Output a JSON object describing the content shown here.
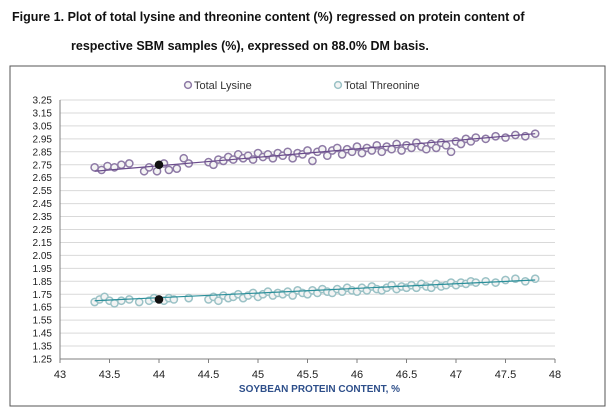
{
  "caption": {
    "line1": "Figure 1.  Plot of total lysine and threonine content (%) regressed on protein content of",
    "line2": "respective SBM samples (%), expressed on 88.0% DM basis."
  },
  "chart_data": {
    "type": "scatter",
    "xlabel": "SOYBEAN PROTEIN CONTENT, %",
    "ylabel": "",
    "xlim": [
      43,
      48
    ],
    "ylim": [
      1.25,
      3.25
    ],
    "xticks": [
      "43",
      "43.5",
      "44",
      "44.5",
      "45",
      "45.5",
      "46",
      "46.5",
      "47",
      "47.5",
      "48"
    ],
    "yticks": [
      "1.25",
      "1.35",
      "1.45",
      "1.55",
      "1.65",
      "1.75",
      "1.85",
      "1.95",
      "2.05",
      "2.15",
      "2.25",
      "2.35",
      "2.45",
      "2.55",
      "2.65",
      "2.75",
      "2.85",
      "2.95",
      "3.05",
      "3.15",
      "3.25"
    ],
    "grid": "horizontal",
    "legend_position": "top",
    "series": [
      {
        "name": "Total Lysine",
        "color": "#8e7aa6",
        "line_color": "#6a4c8c",
        "trend": [
          [
            43.35,
            2.7
          ],
          [
            47.8,
            2.99
          ]
        ],
        "highlight": [
          44.0,
          2.75
        ],
        "points": [
          [
            43.35,
            2.73
          ],
          [
            43.42,
            2.71
          ],
          [
            43.48,
            2.74
          ],
          [
            43.55,
            2.73
          ],
          [
            43.62,
            2.75
          ],
          [
            43.7,
            2.76
          ],
          [
            43.85,
            2.7
          ],
          [
            43.9,
            2.73
          ],
          [
            43.98,
            2.7
          ],
          [
            44.05,
            2.76
          ],
          [
            44.1,
            2.71
          ],
          [
            44.18,
            2.72
          ],
          [
            44.25,
            2.8
          ],
          [
            44.3,
            2.76
          ],
          [
            44.5,
            2.77
          ],
          [
            44.55,
            2.75
          ],
          [
            44.6,
            2.79
          ],
          [
            44.65,
            2.78
          ],
          [
            44.7,
            2.81
          ],
          [
            44.75,
            2.79
          ],
          [
            44.8,
            2.83
          ],
          [
            44.85,
            2.8
          ],
          [
            44.9,
            2.82
          ],
          [
            44.95,
            2.79
          ],
          [
            45.0,
            2.84
          ],
          [
            45.05,
            2.81
          ],
          [
            45.1,
            2.83
          ],
          [
            45.15,
            2.8
          ],
          [
            45.2,
            2.84
          ],
          [
            45.25,
            2.82
          ],
          [
            45.3,
            2.85
          ],
          [
            45.35,
            2.8
          ],
          [
            45.4,
            2.84
          ],
          [
            45.45,
            2.83
          ],
          [
            45.5,
            2.86
          ],
          [
            45.55,
            2.78
          ],
          [
            45.6,
            2.85
          ],
          [
            45.65,
            2.87
          ],
          [
            45.7,
            2.82
          ],
          [
            45.75,
            2.86
          ],
          [
            45.8,
            2.88
          ],
          [
            45.85,
            2.83
          ],
          [
            45.9,
            2.87
          ],
          [
            45.95,
            2.85
          ],
          [
            46.0,
            2.89
          ],
          [
            46.05,
            2.84
          ],
          [
            46.1,
            2.88
          ],
          [
            46.15,
            2.86
          ],
          [
            46.2,
            2.9
          ],
          [
            46.25,
            2.85
          ],
          [
            46.3,
            2.89
          ],
          [
            46.35,
            2.87
          ],
          [
            46.4,
            2.91
          ],
          [
            46.45,
            2.86
          ],
          [
            46.5,
            2.9
          ],
          [
            46.55,
            2.88
          ],
          [
            46.6,
            2.92
          ],
          [
            46.65,
            2.89
          ],
          [
            46.7,
            2.87
          ],
          [
            46.75,
            2.91
          ],
          [
            46.8,
            2.88
          ],
          [
            46.85,
            2.92
          ],
          [
            46.9,
            2.9
          ],
          [
            46.95,
            2.85
          ],
          [
            47.0,
            2.93
          ],
          [
            47.05,
            2.91
          ],
          [
            47.1,
            2.95
          ],
          [
            47.15,
            2.93
          ],
          [
            47.2,
            2.96
          ],
          [
            47.3,
            2.95
          ],
          [
            47.4,
            2.97
          ],
          [
            47.5,
            2.96
          ],
          [
            47.6,
            2.98
          ],
          [
            47.7,
            2.97
          ],
          [
            47.8,
            2.99
          ]
        ]
      },
      {
        "name": "Total Threonine",
        "color": "#9bc2c6",
        "line_color": "#2a8f9a",
        "trend": [
          [
            43.35,
            1.7
          ],
          [
            47.8,
            1.86
          ]
        ],
        "highlight": [
          44.0,
          1.71
        ],
        "points": [
          [
            43.35,
            1.69
          ],
          [
            43.4,
            1.71
          ],
          [
            43.45,
            1.73
          ],
          [
            43.5,
            1.7
          ],
          [
            43.55,
            1.68
          ],
          [
            43.62,
            1.7
          ],
          [
            43.7,
            1.71
          ],
          [
            43.8,
            1.69
          ],
          [
            43.9,
            1.7
          ],
          [
            43.95,
            1.72
          ],
          [
            44.05,
            1.7
          ],
          [
            44.1,
            1.72
          ],
          [
            44.15,
            1.71
          ],
          [
            44.3,
            1.72
          ],
          [
            44.5,
            1.71
          ],
          [
            44.55,
            1.73
          ],
          [
            44.6,
            1.7
          ],
          [
            44.65,
            1.74
          ],
          [
            44.7,
            1.72
          ],
          [
            44.75,
            1.73
          ],
          [
            44.8,
            1.75
          ],
          [
            44.85,
            1.72
          ],
          [
            44.9,
            1.74
          ],
          [
            44.95,
            1.76
          ],
          [
            45.0,
            1.73
          ],
          [
            45.05,
            1.75
          ],
          [
            45.1,
            1.77
          ],
          [
            45.15,
            1.74
          ],
          [
            45.2,
            1.76
          ],
          [
            45.25,
            1.75
          ],
          [
            45.3,
            1.77
          ],
          [
            45.35,
            1.74
          ],
          [
            45.4,
            1.78
          ],
          [
            45.45,
            1.76
          ],
          [
            45.5,
            1.75
          ],
          [
            45.55,
            1.78
          ],
          [
            45.6,
            1.76
          ],
          [
            45.65,
            1.79
          ],
          [
            45.7,
            1.77
          ],
          [
            45.75,
            1.76
          ],
          [
            45.8,
            1.79
          ],
          [
            45.85,
            1.77
          ],
          [
            45.9,
            1.8
          ],
          [
            45.95,
            1.78
          ],
          [
            46.0,
            1.77
          ],
          [
            46.05,
            1.8
          ],
          [
            46.1,
            1.78
          ],
          [
            46.15,
            1.81
          ],
          [
            46.2,
            1.79
          ],
          [
            46.25,
            1.78
          ],
          [
            46.3,
            1.8
          ],
          [
            46.35,
            1.82
          ],
          [
            46.4,
            1.79
          ],
          [
            46.45,
            1.81
          ],
          [
            46.5,
            1.8
          ],
          [
            46.55,
            1.82
          ],
          [
            46.6,
            1.8
          ],
          [
            46.65,
            1.83
          ],
          [
            46.7,
            1.81
          ],
          [
            46.75,
            1.8
          ],
          [
            46.8,
            1.83
          ],
          [
            46.85,
            1.81
          ],
          [
            46.9,
            1.82
          ],
          [
            46.95,
            1.84
          ],
          [
            47.0,
            1.82
          ],
          [
            47.05,
            1.84
          ],
          [
            47.1,
            1.83
          ],
          [
            47.15,
            1.85
          ],
          [
            47.2,
            1.84
          ],
          [
            47.3,
            1.85
          ],
          [
            47.4,
            1.84
          ],
          [
            47.5,
            1.86
          ],
          [
            47.6,
            1.87
          ],
          [
            47.7,
            1.85
          ],
          [
            47.8,
            1.87
          ]
        ]
      }
    ]
  }
}
